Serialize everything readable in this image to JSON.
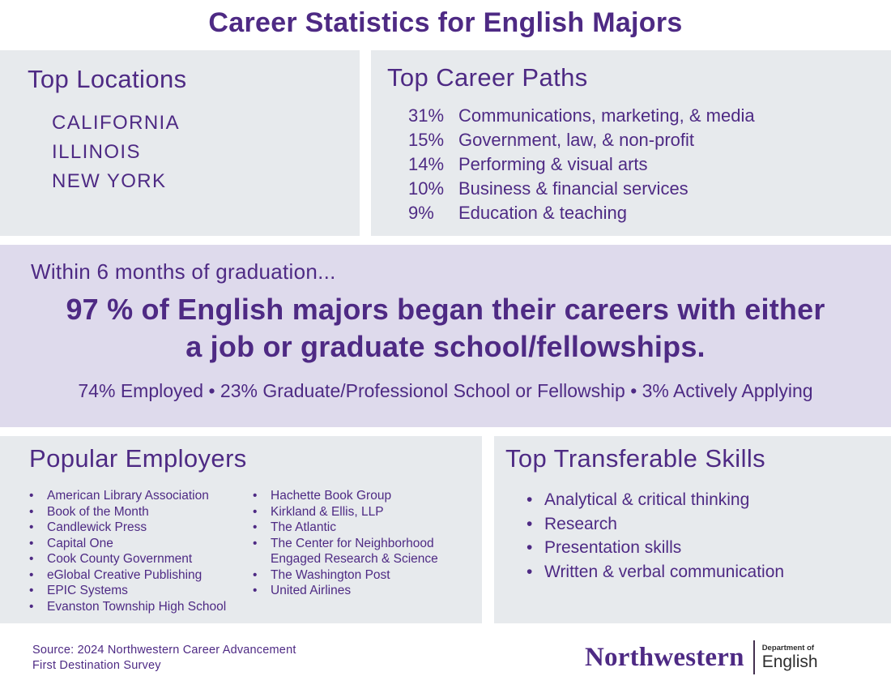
{
  "title": "Career Statistics for English Majors",
  "colors": {
    "purple": "#4E2A84",
    "box_background": "#E7EAED",
    "band_background": "#DEDAEC",
    "logo_department_text": "#2E2E2E"
  },
  "top_locations": {
    "heading": "Top Locations",
    "items": [
      "CALIFORNIA",
      "ILLINOIS",
      "NEW YORK"
    ]
  },
  "career_paths": {
    "heading": "Top Career Paths",
    "items": [
      {
        "pct": "31%",
        "label": "Communications, marketing, & media"
      },
      {
        "pct": "15%",
        "label": "Government, law, & non-profit"
      },
      {
        "pct": "14%",
        "label": "Performing & visual arts"
      },
      {
        "pct": "10%",
        "label": "Business & financial services"
      },
      {
        "pct": "9%",
        "label": "Education & teaching"
      }
    ]
  },
  "band": {
    "intro": "Within 6 months of graduation...",
    "headline_line1": "97 % of English majors began their careers with either",
    "headline_line2": "a job or graduate school/fellowships.",
    "breakdown": "74% Employed • 23% Graduate/Professionol School or Fellowship • 3% Actively Applying"
  },
  "employers": {
    "heading": "Popular Employers",
    "col1": [
      "American Library Association",
      "Book of the Month",
      "Candlewick Press",
      "Capital One",
      "Cook County Government",
      "eGlobal Creative Publishing",
      "EPIC Systems",
      "Evanston Township High School"
    ],
    "col2": [
      "Hachette Book Group",
      "Kirkland & Ellis, LLP",
      "The Atlantic",
      "The Center for Neighborhood Engaged Research & Science",
      "The Washington Post",
      "United Airlines"
    ]
  },
  "skills": {
    "heading": "Top Transferable Skills",
    "items": [
      "Analytical & critical thinking",
      "Research",
      "Presentation skills",
      "Written & verbal communication"
    ]
  },
  "footer": {
    "source_line1": "Source: 2024 Northwestern Career Advancement",
    "source_line2": "First Destination Survey",
    "logo": {
      "wordmark": "Northwestern",
      "department_small": "Department of",
      "department_name": "English"
    }
  }
}
